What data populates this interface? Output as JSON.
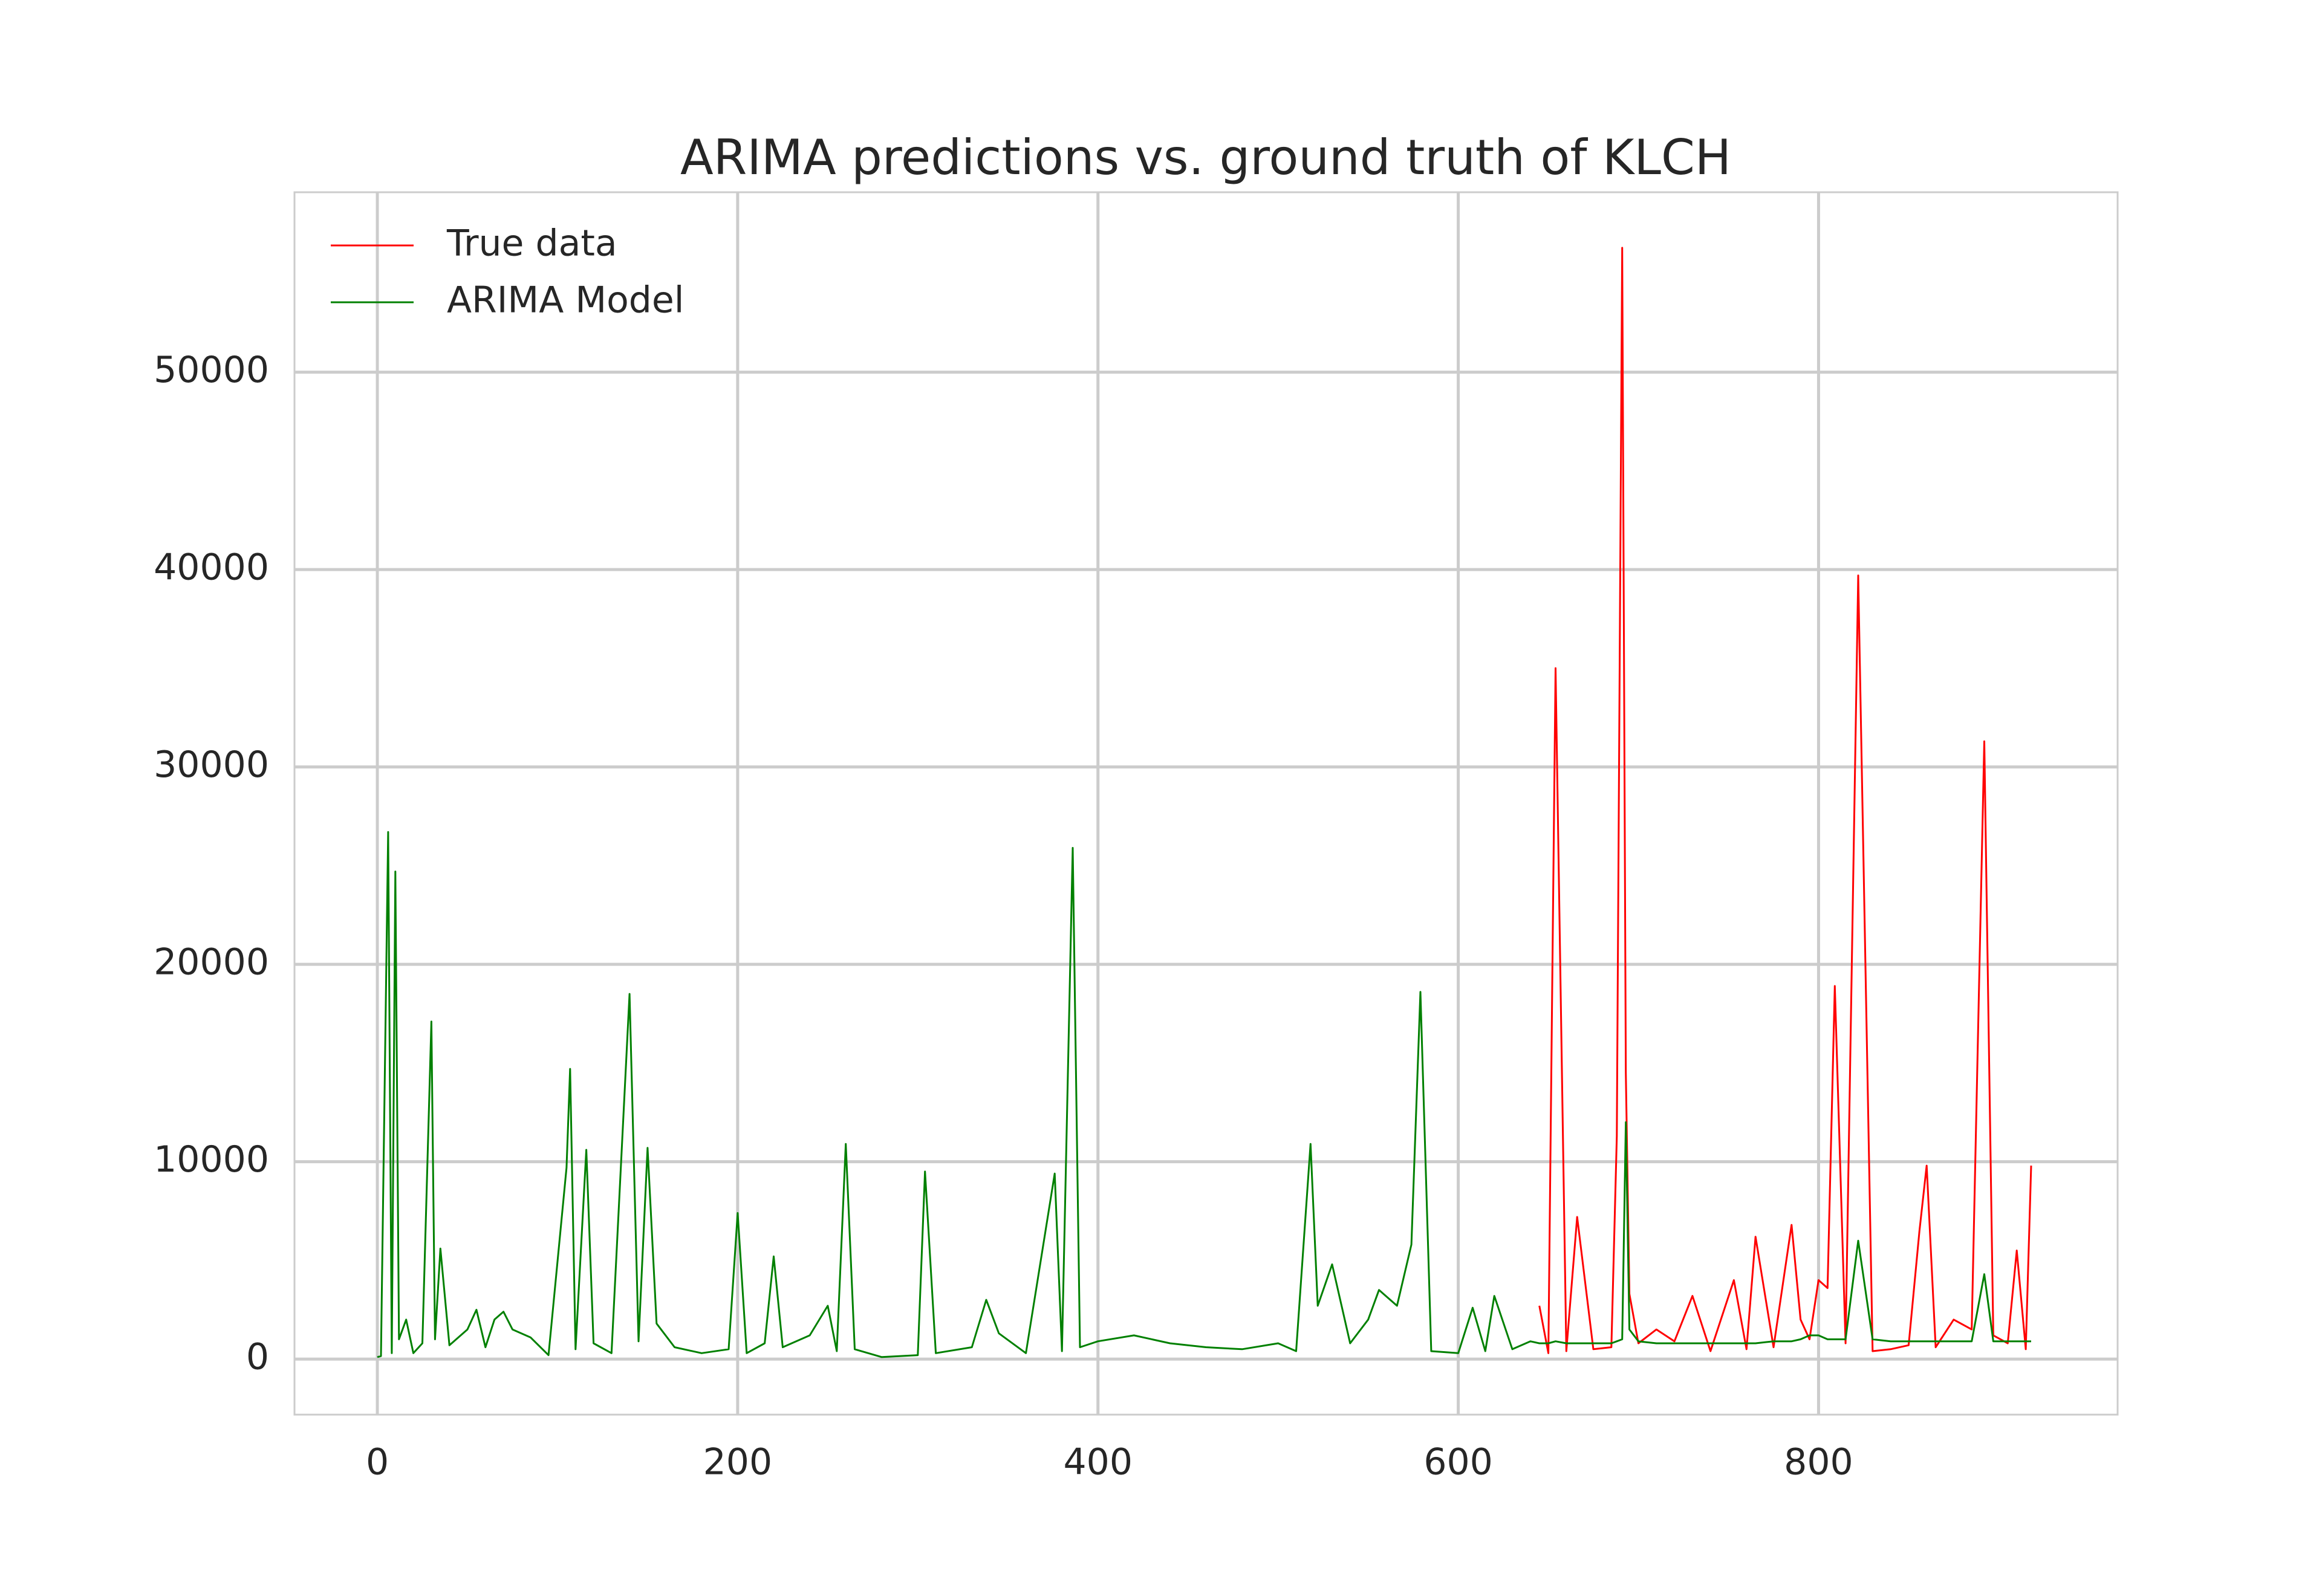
{
  "chart_data": {
    "type": "line",
    "title": "ARIMA predictions vs. ground truth of KLCH",
    "x": [
      0,
      2,
      6,
      8,
      10,
      12,
      16,
      20,
      25,
      30,
      32,
      35,
      40,
      50,
      55,
      60,
      65,
      70,
      75,
      85,
      95,
      105,
      107,
      110,
      116,
      120,
      130,
      140,
      145,
      150,
      155,
      165,
      180,
      195,
      200,
      205,
      215,
      220,
      225,
      240,
      250,
      255,
      260,
      265,
      280,
      300,
      304,
      310,
      330,
      338,
      345,
      360,
      376,
      380,
      386,
      390,
      400,
      420,
      440,
      460,
      480,
      500,
      510,
      518,
      522,
      530,
      540,
      550,
      556,
      566,
      574,
      579,
      585,
      600,
      608,
      615,
      620,
      630,
      640,
      645,
      650,
      654,
      660,
      666,
      675,
      685,
      688,
      691,
      693,
      695,
      700,
      710,
      720,
      730,
      740,
      753,
      760,
      765,
      775,
      785,
      790,
      795,
      800,
      805,
      809,
      815,
      822,
      830,
      840,
      850,
      856,
      860,
      865,
      875,
      885,
      892,
      897,
      905,
      910,
      915,
      918
    ],
    "series": [
      {
        "name": "True data",
        "color": "#ff0000",
        "values": [
          null,
          null,
          null,
          null,
          null,
          null,
          null,
          null,
          null,
          null,
          null,
          null,
          null,
          null,
          null,
          null,
          null,
          null,
          null,
          null,
          null,
          null,
          null,
          null,
          null,
          null,
          null,
          null,
          null,
          null,
          null,
          null,
          null,
          null,
          null,
          null,
          null,
          null,
          null,
          null,
          null,
          null,
          null,
          null,
          null,
          null,
          null,
          null,
          null,
          null,
          null,
          null,
          null,
          null,
          null,
          null,
          null,
          null,
          null,
          null,
          null,
          null,
          null,
          null,
          null,
          null,
          null,
          null,
          null,
          null,
          null,
          null,
          null,
          null,
          null,
          null,
          null,
          null,
          null,
          2700,
          300,
          35000,
          400,
          7200,
          500,
          600,
          11300,
          56300,
          14500,
          3300,
          800,
          1500,
          900,
          3200,
          400,
          4000,
          500,
          6200,
          600,
          6800,
          2000,
          1000,
          4000,
          3600,
          18900,
          800,
          39700,
          400,
          500,
          700,
          6500,
          9800,
          600,
          2000,
          1500,
          31300,
          1200,
          800,
          5500,
          500,
          9800
        ]
      },
      {
        "name": "ARIMA Model",
        "color": "#008000",
        "values": [
          100,
          150,
          26700,
          300,
          24700,
          1000,
          2000,
          300,
          800,
          17100,
          1000,
          5600,
          700,
          1500,
          2500,
          600,
          2000,
          2400,
          1500,
          1100,
          200,
          9700,
          14700,
          500,
          10600,
          800,
          300,
          18500,
          900,
          10700,
          1800,
          600,
          300,
          500,
          7400,
          300,
          800,
          5200,
          600,
          1200,
          2700,
          400,
          10900,
          500,
          100,
          200,
          9500,
          300,
          600,
          3000,
          1300,
          300,
          9400,
          400,
          25900,
          600,
          900,
          1200,
          800,
          600,
          500,
          800,
          400,
          10900,
          2700,
          4800,
          800,
          2000,
          3500,
          2700,
          5800,
          18600,
          400,
          300,
          2600,
          400,
          3200,
          500,
          900,
          800,
          800,
          900,
          800,
          800,
          800,
          800,
          900,
          1000,
          12000,
          1500,
          900,
          800,
          800,
          800,
          800,
          800,
          800,
          800,
          900,
          900,
          1000,
          1200,
          1200,
          1000,
          1000,
          1000,
          6000,
          1000,
          900,
          900,
          900,
          900,
          900,
          900,
          900,
          4300,
          900,
          900,
          900,
          900,
          900
        ]
      }
    ],
    "xlim": [
      -46,
      966
    ],
    "ylim": [
      -2815,
      59115
    ],
    "xticks": [
      0,
      200,
      400,
      600,
      800
    ],
    "yticks": [
      0,
      10000,
      20000,
      30000,
      40000,
      50000
    ],
    "grid": true,
    "legend": "upper left"
  }
}
